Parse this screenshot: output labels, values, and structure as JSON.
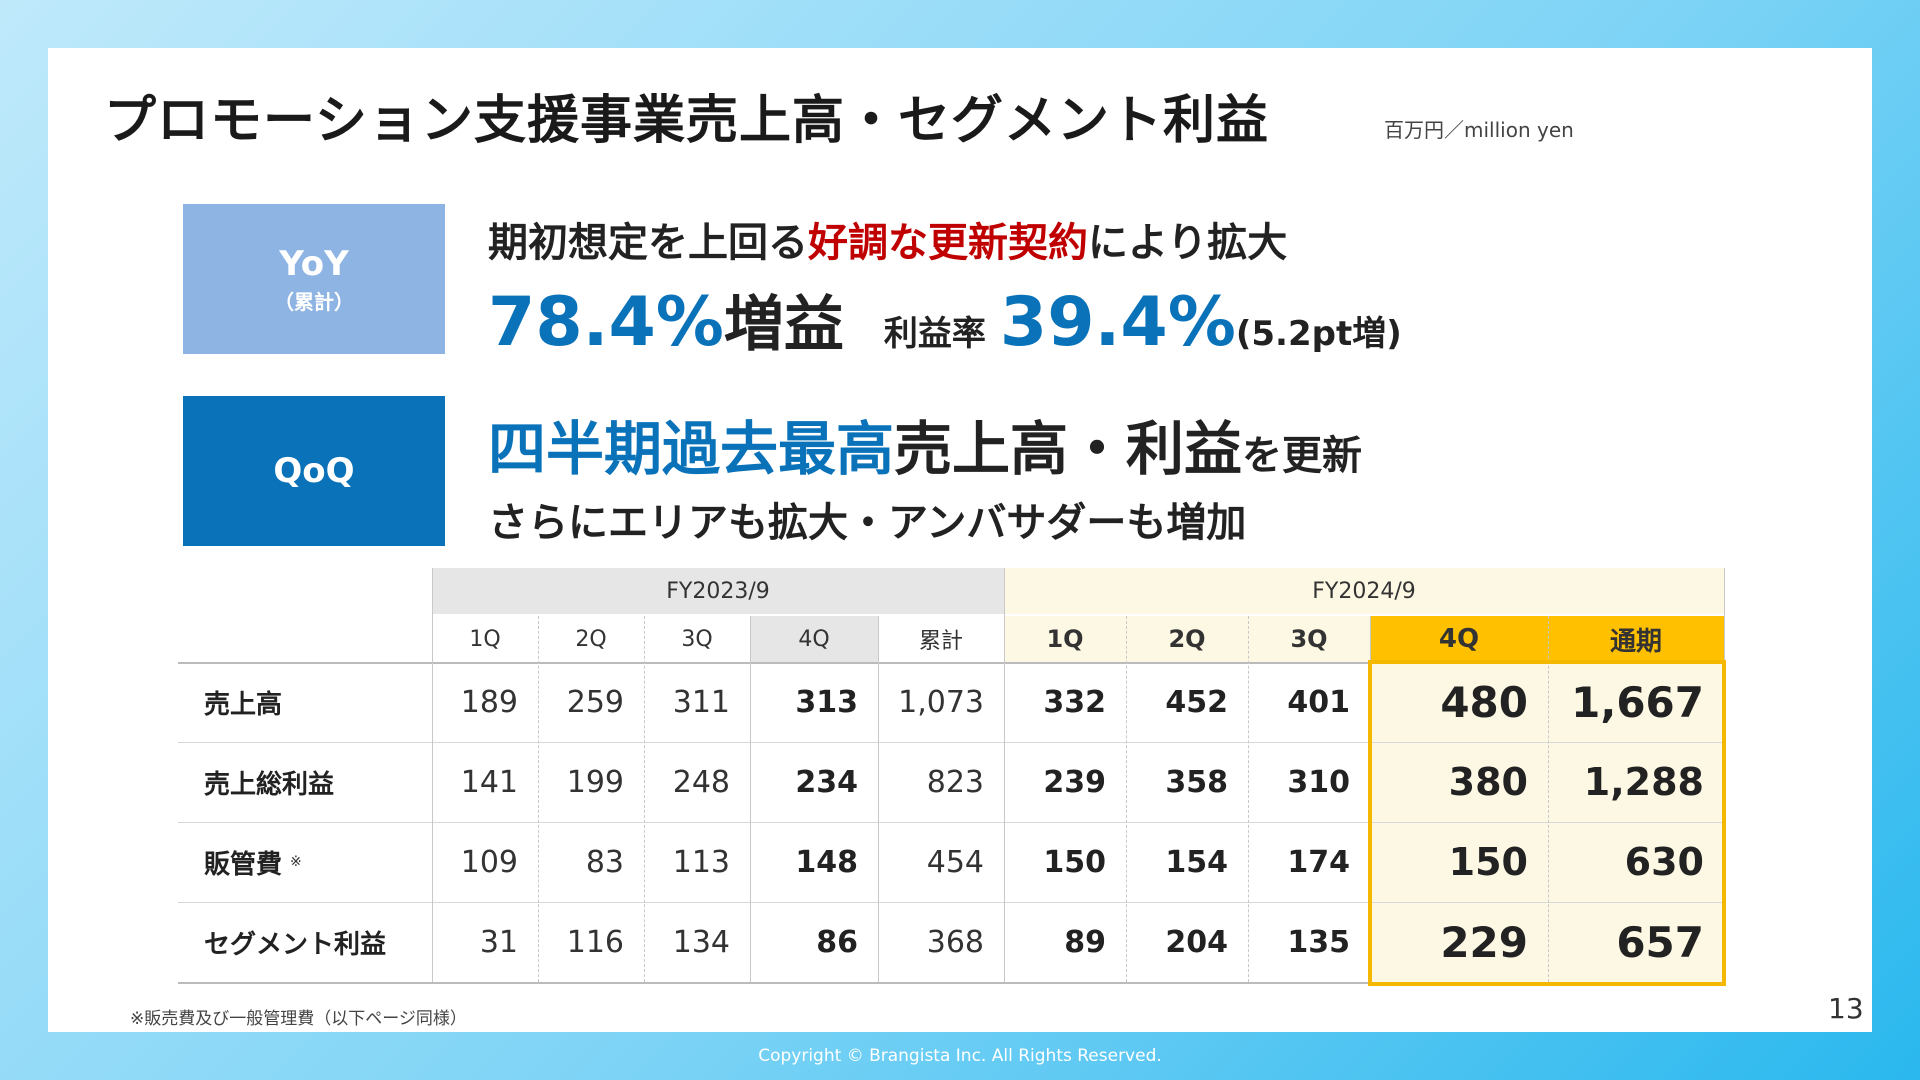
{
  "title": "プロモーション支援事業売上高・セグメント利益",
  "unit": "百万円／million yen",
  "yoy": {
    "label": "YoY",
    "sublabel": "（累計）",
    "line1_pre": "期初想定を上回る",
    "line1_red": "好調な更新契約",
    "line1_post": "により拡大",
    "profit_growth": "78.4%",
    "profit_growth_suffix": "増益",
    "margin_label": "利益率",
    "margin_value": "39.4%",
    "margin_change": "(5.2pt増)"
  },
  "qoq": {
    "label": "QoQ",
    "line1_blue": "四半期過去最高",
    "line1_black": "売上高・利益",
    "line1_small": "を更新",
    "line2": "さらにエリアも拡大・アンバサダーも増加"
  },
  "table": {
    "fy2023_label": "FY2023/9",
    "fy2024_label": "FY2024/9",
    "columns": [
      "1Q",
      "2Q",
      "3Q",
      "4Q",
      "累計",
      "1Q",
      "2Q",
      "3Q",
      "4Q",
      "通期"
    ],
    "rows": [
      {
        "label": "売上高",
        "mark": "",
        "values": [
          "189",
          "259",
          "311",
          "313",
          "1,073",
          "332",
          "452",
          "401",
          "480",
          "1,667"
        ]
      },
      {
        "label": "売上総利益",
        "mark": "",
        "values": [
          "141",
          "199",
          "248",
          "234",
          "823",
          "239",
          "358",
          "310",
          "380",
          "1,288"
        ]
      },
      {
        "label": "販管費",
        "mark": "※",
        "values": [
          "109",
          "83",
          "113",
          "148",
          "454",
          "150",
          "154",
          "174",
          "150",
          "630"
        ]
      },
      {
        "label": "セグメント利益",
        "mark": "",
        "values": [
          "31",
          "116",
          "134",
          "86",
          "368",
          "89",
          "204",
          "135",
          "229",
          "657"
        ]
      }
    ]
  },
  "footnote": "※販売費及び一般管理費（以下ページ同様）",
  "page_number": "13",
  "copyright": "Copyright © Brangista Inc. All Rights Reserved."
}
